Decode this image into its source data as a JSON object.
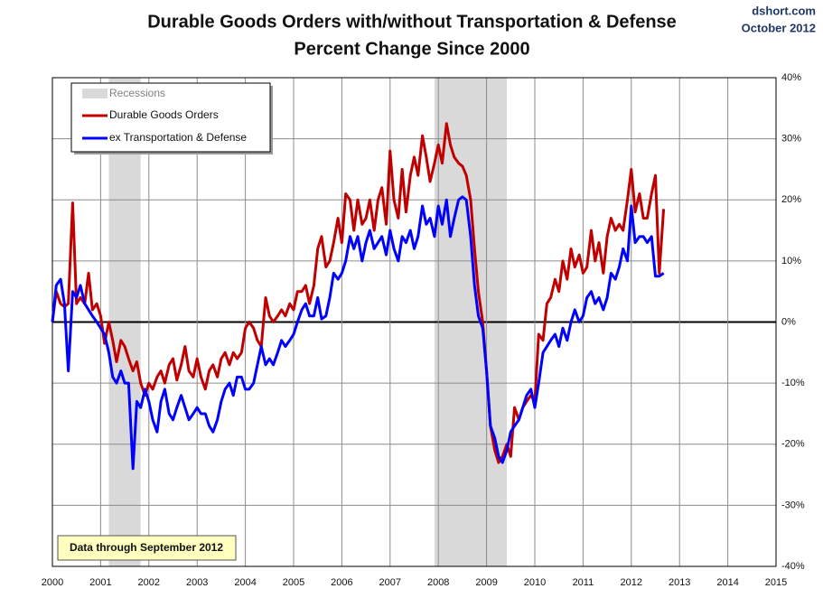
{
  "chart_data": {
    "type": "line",
    "title": "Durable Goods Orders with/without Transportation & Defense",
    "subtitle": "Percent Change Since 2000",
    "source": "dshort.com",
    "source_date": "October 2012",
    "annotation": "Data through September 2012",
    "grid": true,
    "legend": "upper left",
    "xlim": [
      2000,
      2015
    ],
    "xticks": [
      2000,
      2001,
      2002,
      2003,
      2004,
      2005,
      2006,
      2007,
      2008,
      2009,
      2010,
      2011,
      2012,
      2013,
      2014,
      2015
    ],
    "ylim": [
      -40,
      40
    ],
    "yticks": [
      {
        "value": 40,
        "label": "40%"
      },
      {
        "value": 30,
        "label": "30%"
      },
      {
        "value": 20,
        "label": "20%"
      },
      {
        "value": 10,
        "label": "10%"
      },
      {
        "value": 0,
        "label": "0%"
      },
      {
        "value": -10,
        "label": "-10%"
      },
      {
        "value": -20,
        "label": "-20%"
      },
      {
        "value": -30,
        "label": "-30%"
      },
      {
        "value": -40,
        "label": "-40%"
      }
    ],
    "recessions": {
      "name": "Recessions",
      "color": "#d9d9d9",
      "ranges": [
        [
          2001.17,
          2001.83
        ],
        [
          2007.92,
          2009.42
        ]
      ]
    },
    "x": [
      2000,
      2000.08,
      2000.17,
      2000.25,
      2000.33,
      2000.42,
      2000.5,
      2000.58,
      2000.67,
      2000.75,
      2000.83,
      2000.92,
      2001,
      2001.08,
      2001.17,
      2001.25,
      2001.33,
      2001.42,
      2001.5,
      2001.58,
      2001.67,
      2001.75,
      2001.83,
      2001.92,
      2002,
      2002.08,
      2002.17,
      2002.25,
      2002.33,
      2002.42,
      2002.5,
      2002.58,
      2002.67,
      2002.75,
      2002.83,
      2002.92,
      2003,
      2003.08,
      2003.17,
      2003.25,
      2003.33,
      2003.42,
      2003.5,
      2003.58,
      2003.67,
      2003.75,
      2003.83,
      2003.92,
      2004,
      2004.08,
      2004.17,
      2004.25,
      2004.33,
      2004.42,
      2004.5,
      2004.58,
      2004.67,
      2004.75,
      2004.83,
      2004.92,
      2005,
      2005.08,
      2005.17,
      2005.25,
      2005.33,
      2005.42,
      2005.5,
      2005.58,
      2005.67,
      2005.75,
      2005.83,
      2005.92,
      2006,
      2006.08,
      2006.17,
      2006.25,
      2006.33,
      2006.42,
      2006.5,
      2006.58,
      2006.67,
      2006.75,
      2006.83,
      2006.92,
      2007,
      2007.08,
      2007.17,
      2007.25,
      2007.33,
      2007.42,
      2007.5,
      2007.58,
      2007.67,
      2007.75,
      2007.83,
      2007.92,
      2008,
      2008.08,
      2008.17,
      2008.25,
      2008.33,
      2008.42,
      2008.5,
      2008.58,
      2008.67,
      2008.75,
      2008.83,
      2008.92,
      2009,
      2009.08,
      2009.17,
      2009.25,
      2009.33,
      2009.42,
      2009.5,
      2009.58,
      2009.67,
      2009.75,
      2009.83,
      2009.92,
      2010,
      2010.08,
      2010.17,
      2010.25,
      2010.33,
      2010.42,
      2010.5,
      2010.58,
      2010.67,
      2010.75,
      2010.83,
      2010.92,
      2011,
      2011.08,
      2011.17,
      2011.25,
      2011.33,
      2011.42,
      2011.5,
      2011.58,
      2011.67,
      2011.75,
      2011.83,
      2011.92,
      2012,
      2012.08,
      2012.17,
      2012.25,
      2012.33,
      2012.42,
      2012.5,
      2012.58,
      2012.67
    ],
    "series": [
      {
        "name": "Durable Goods Orders",
        "color": "#c00000",
        "values": [
          0,
          5,
          3,
          2.5,
          3,
          19.5,
          3,
          4,
          3,
          8,
          2,
          3,
          1,
          -3.5,
          0,
          -3,
          -6.5,
          -3,
          -4,
          -6,
          -8,
          -6.5,
          -10,
          -12,
          -10,
          -11,
          -9,
          -8,
          -10,
          -7,
          -6,
          -9.5,
          -7,
          -4,
          -8,
          -9,
          -6,
          -9,
          -11,
          -8,
          -7,
          -9,
          -6,
          -5,
          -7,
          -5,
          -6,
          -5,
          -1,
          0,
          -1,
          -3,
          -4,
          4,
          1,
          0,
          1,
          2,
          1,
          3,
          2,
          5,
          5,
          6,
          3,
          6,
          12,
          14,
          9,
          10,
          13,
          17,
          13,
          21,
          20,
          15,
          20,
          16,
          17,
          20,
          15,
          20,
          22,
          16,
          28,
          20,
          17,
          25,
          18,
          24,
          27,
          24,
          30.5,
          27,
          23,
          26,
          29,
          26,
          32.5,
          29,
          27,
          26,
          25.5,
          24,
          20,
          12,
          5,
          0,
          -8,
          -17,
          -21,
          -23,
          -22,
          -20,
          -22,
          -14,
          -16,
          -14,
          -13,
          -12,
          -13,
          -2,
          -3,
          3,
          4,
          7,
          5,
          10,
          7,
          12,
          9,
          11,
          8,
          9,
          15,
          10,
          13,
          8,
          14,
          17,
          15,
          16,
          15,
          20,
          25,
          18,
          21,
          17,
          17,
          21,
          24,
          8,
          18.5
        ]
      },
      {
        "name": "ex Transportation & Defense",
        "color": "#0000ff",
        "values": [
          0,
          6,
          7,
          3,
          -8,
          5,
          4,
          6,
          3,
          2,
          1,
          0,
          -1,
          -2,
          -5,
          -9,
          -10,
          -8,
          -10,
          -10,
          -24,
          -13,
          -14,
          -11,
          -13,
          -16,
          -18,
          -13,
          -11,
          -15,
          -16,
          -14,
          -12,
          -14,
          -16,
          -15,
          -14,
          -15,
          -15,
          -17,
          -18,
          -16,
          -13,
          -11,
          -10,
          -12,
          -9,
          -9,
          -11,
          -11,
          -10,
          -7,
          -4,
          -7,
          -6,
          -7,
          -5,
          -3,
          -4,
          -3,
          -2,
          0,
          2,
          3,
          1,
          1,
          4,
          0.5,
          1,
          4,
          8,
          7,
          8,
          10,
          14,
          12,
          14,
          10,
          13,
          15,
          12,
          13,
          14,
          11,
          15,
          12,
          10,
          14,
          13,
          15,
          12,
          14,
          19,
          16,
          17,
          14,
          19,
          16,
          20,
          14,
          17,
          20,
          20.5,
          20,
          14,
          6,
          1,
          -1,
          -8,
          -17,
          -19,
          -22,
          -23,
          -21,
          -18,
          -17,
          -16,
          -14,
          -12,
          -11,
          -14,
          -10,
          -5,
          -4,
          -3,
          -2,
          -4,
          -1,
          -3,
          0,
          2,
          0,
          1,
          4,
          5,
          3,
          4,
          2,
          4,
          8,
          7,
          9,
          12,
          10,
          19,
          13,
          14,
          14,
          13,
          14,
          7.5,
          7.5,
          8
        ]
      }
    ]
  }
}
